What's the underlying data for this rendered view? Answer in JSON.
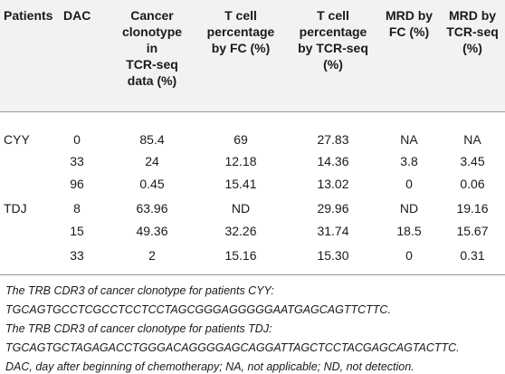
{
  "table": {
    "headers": [
      "Patients",
      "DAC",
      "Cancer\nclonotype\nin\nTCR-seq\ndata (%)",
      "T cell\npercentage\nby FC (%)",
      "T cell\npercentage\nby TCR-seq\n(%)",
      "MRD by\nFC (%)",
      "MRD by\nTCR-seq\n(%)"
    ],
    "rows": [
      {
        "patient": "CYY",
        "dac": "0",
        "clonotype": "85.4",
        "tcell_fc": "69",
        "tcell_seq": "27.83",
        "mrd_fc": "NA",
        "mrd_seq": "NA"
      },
      {
        "patient": "",
        "dac": "33",
        "clonotype": "24",
        "tcell_fc": "12.18",
        "tcell_seq": "14.36",
        "mrd_fc": "3.8",
        "mrd_seq": "3.45"
      },
      {
        "patient": "",
        "dac": "96",
        "clonotype": "0.45",
        "tcell_fc": "15.41",
        "tcell_seq": "13.02",
        "mrd_fc": "0",
        "mrd_seq": "0.06"
      },
      {
        "patient": "TDJ",
        "dac": "8",
        "clonotype": "63.96",
        "tcell_fc": "ND",
        "tcell_seq": "29.96",
        "mrd_fc": "ND",
        "mrd_seq": "19.16"
      },
      {
        "patient": "",
        "dac": "15",
        "clonotype": "49.36",
        "tcell_fc": "32.26",
        "tcell_seq": "31.74",
        "mrd_fc": "18.5",
        "mrd_seq": "15.67"
      },
      {
        "patient": "",
        "dac": "33",
        "clonotype": "2",
        "tcell_fc": "15.16",
        "tcell_seq": "15.30",
        "mrd_fc": "0",
        "mrd_seq": "0.31"
      }
    ]
  },
  "footnotes": [
    "The TRB CDR3 of cancer clonotype for patients CYY:",
    "TGCAGTGCCTCGCCTCCTCCTAGCGGGAGGGGGAATGAGCAGTTCTTC.",
    "The TRB CDR3 of cancer clonotype for patients TDJ:",
    "TGCAGTGCTAGAGACCTGGGACAGGGGAGCAGGATTAGCTCCTACGAGCAGTACTTC.",
    "DAC, day after beginning of chemotherapy; NA, not applicable; ND, not detection."
  ]
}
